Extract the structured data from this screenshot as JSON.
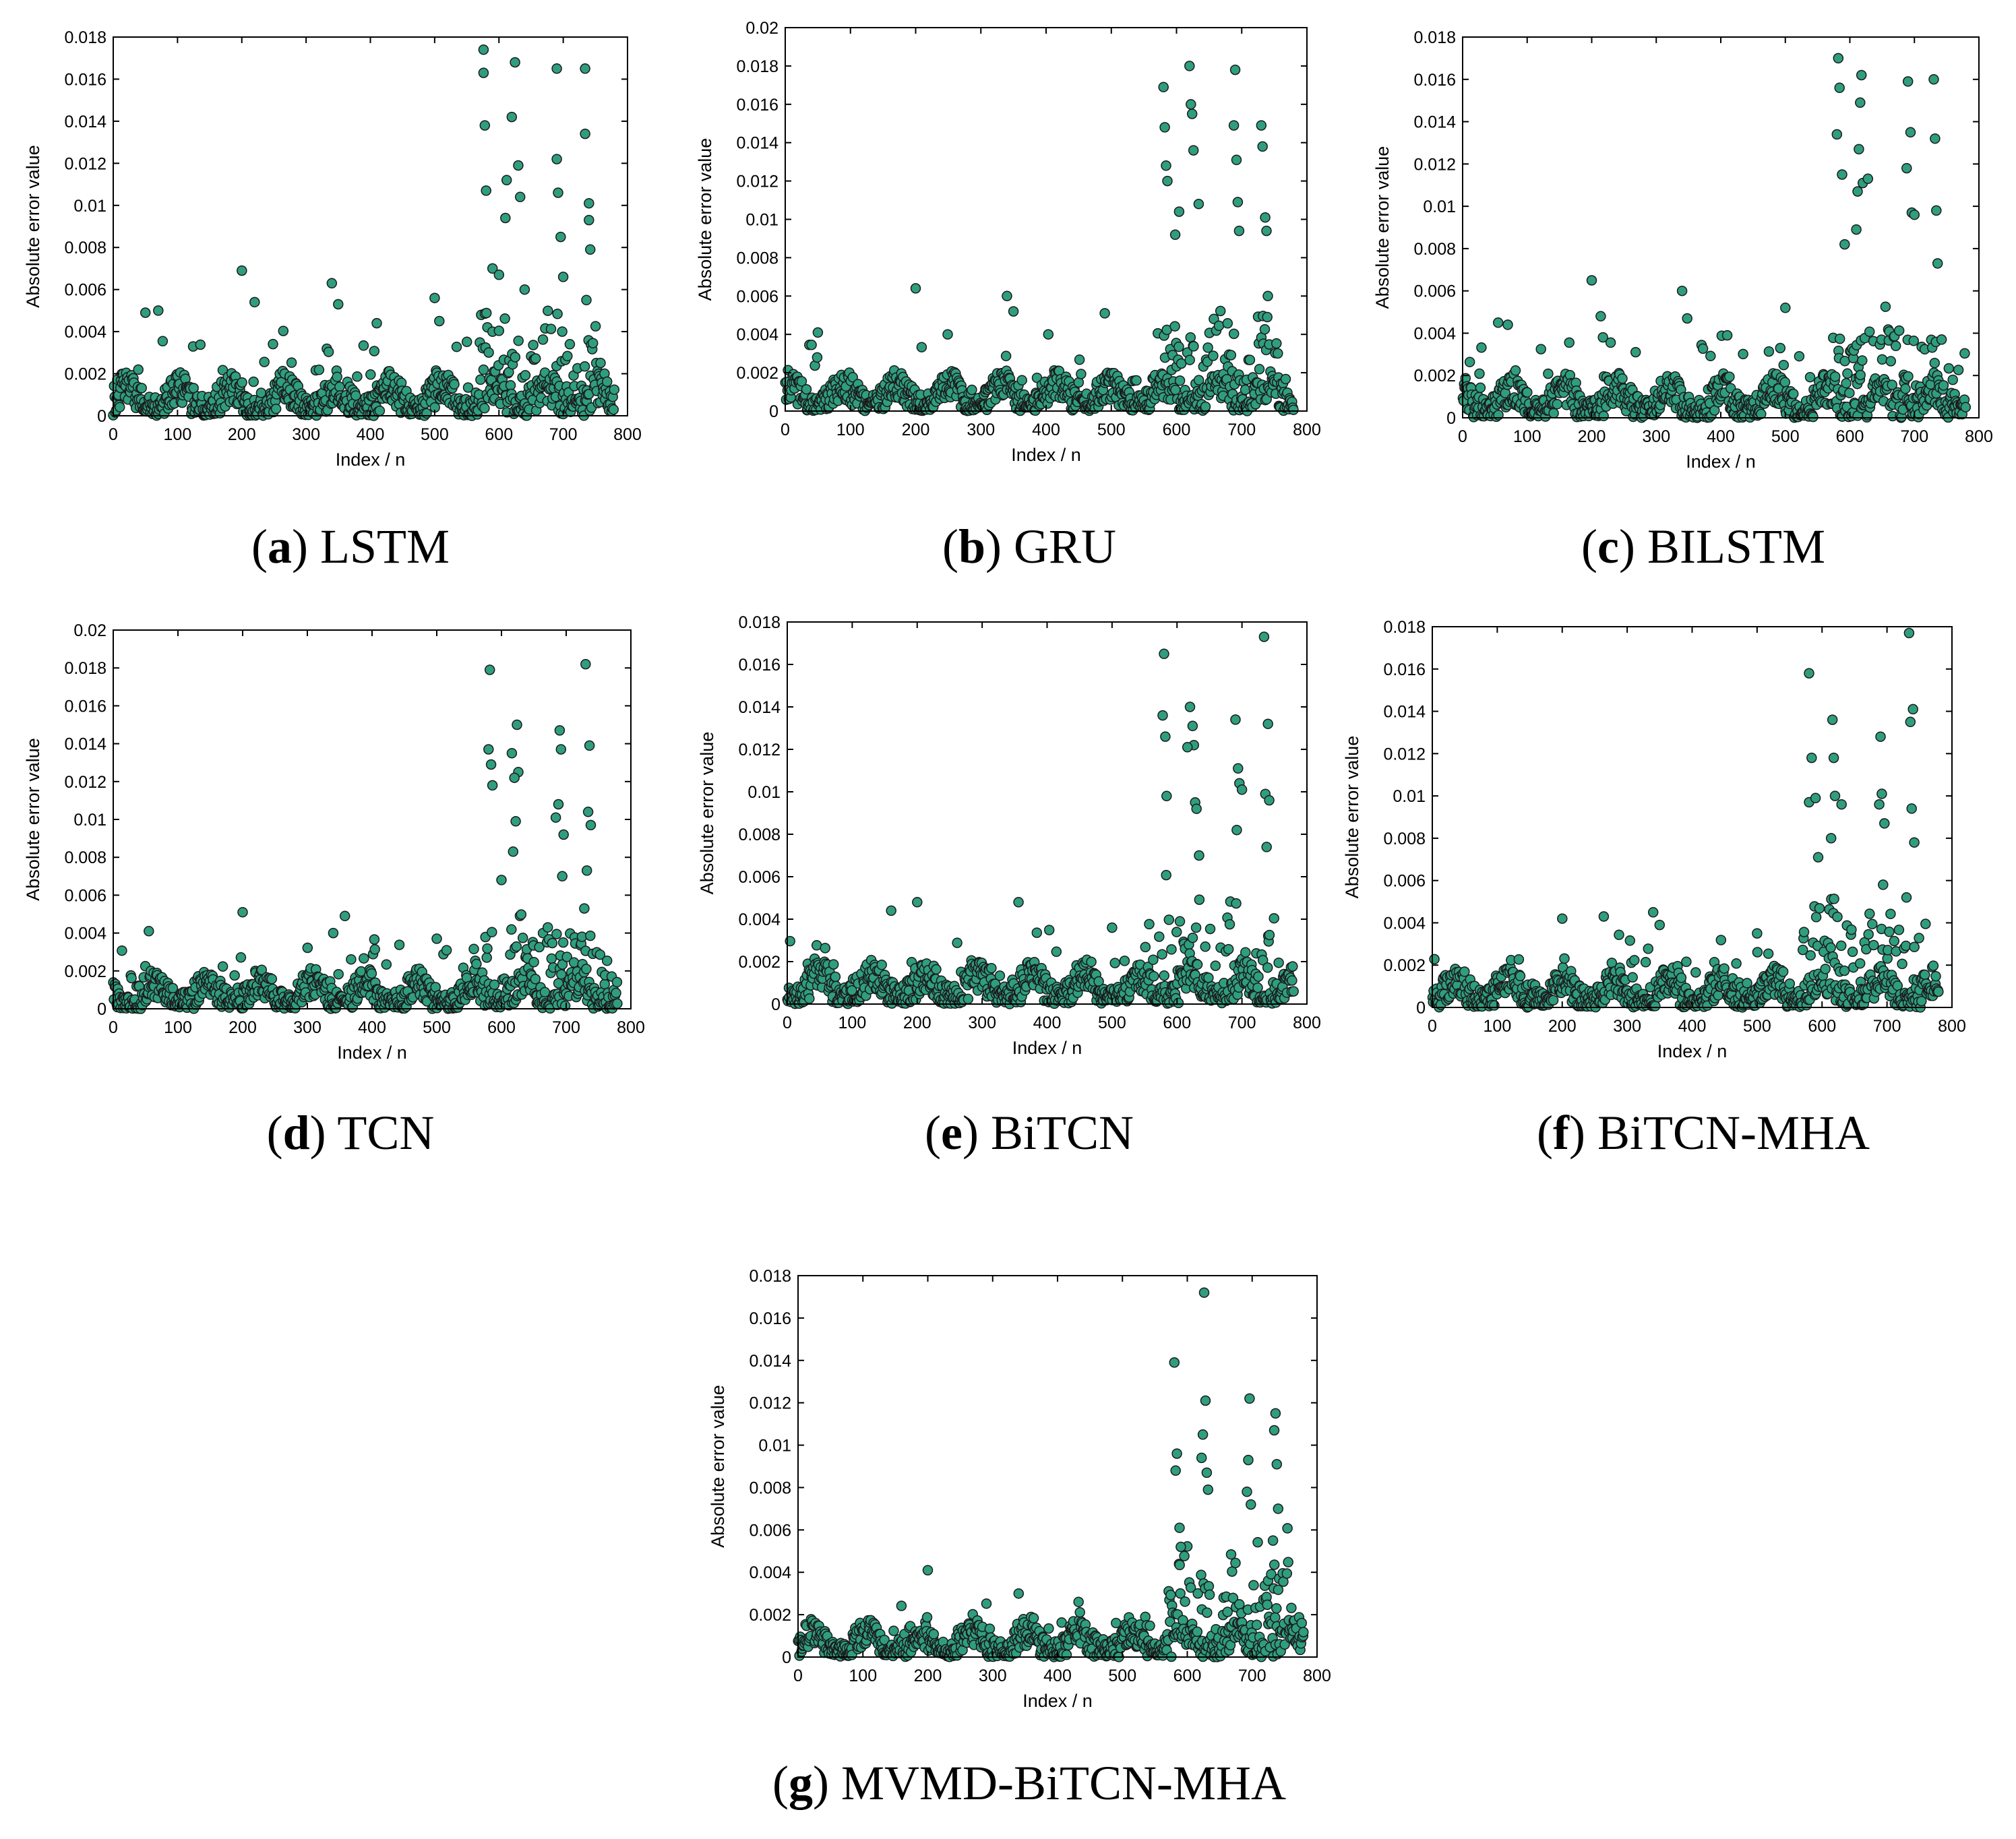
{
  "colors": {
    "marker_fill": "#2f9e7e",
    "marker_stroke": "#1b1b1b",
    "axis": "#000000"
  },
  "chart_data": [
    {
      "type": "scatter",
      "panel": "a",
      "letter": "a",
      "label": " LSTM",
      "xlabel": "Index / n",
      "ylabel": "Absolute error value",
      "xlim": [
        0,
        800
      ],
      "ylim": [
        0,
        0.018
      ],
      "xticks": [
        0,
        100,
        200,
        300,
        400,
        500,
        600,
        700,
        800
      ],
      "xticklabels": [
        "0",
        "100",
        "200",
        "300",
        "400",
        "500",
        "600",
        "700",
        "800"
      ],
      "yticks": [
        0,
        0.002,
        0.004,
        0.006,
        0.008,
        0.01,
        0.012,
        0.014,
        0.016,
        0.018
      ],
      "yticklabels": [
        "0",
        "0.002",
        "0.004",
        "0.006",
        "0.008",
        "0.01",
        "0.012",
        "0.014",
        "0.016",
        "0.018"
      ],
      "n_points": 780,
      "baseline_level": 0.0013,
      "baseline_max": 0.0045,
      "peaks": [
        [
          50,
          0.0049
        ],
        [
          70,
          0.005
        ],
        [
          200,
          0.0069
        ],
        [
          220,
          0.0054
        ],
        [
          340,
          0.0063
        ],
        [
          350,
          0.0053
        ],
        [
          410,
          0.0044
        ],
        [
          500,
          0.0056
        ],
        [
          576,
          0.0174
        ],
        [
          576,
          0.0163
        ],
        [
          578,
          0.0138
        ],
        [
          580,
          0.0107
        ],
        [
          590,
          0.007
        ],
        [
          600,
          0.0067
        ],
        [
          610,
          0.0094
        ],
        [
          612,
          0.0112
        ],
        [
          620,
          0.0142
        ],
        [
          625,
          0.0168
        ],
        [
          630,
          0.0119
        ],
        [
          633,
          0.0104
        ],
        [
          640,
          0.006
        ],
        [
          690,
          0.0165
        ],
        [
          690,
          0.0122
        ],
        [
          692,
          0.0106
        ],
        [
          696,
          0.0085
        ],
        [
          700,
          0.0066
        ],
        [
          734,
          0.0165
        ],
        [
          734,
          0.0134
        ],
        [
          740,
          0.0101
        ],
        [
          740,
          0.0093
        ],
        [
          742,
          0.0079
        ],
        [
          736,
          0.0055
        ]
      ]
    },
    {
      "type": "scatter",
      "panel": "b",
      "letter": "b",
      "label": " GRU",
      "xlabel": "Index / n",
      "ylabel": "Absolute error value",
      "xlim": [
        0,
        800
      ],
      "ylim": [
        0,
        0.02
      ],
      "xticks": [
        0,
        100,
        200,
        300,
        400,
        500,
        600,
        700,
        800
      ],
      "xticklabels": [
        "0",
        "100",
        "200",
        "300",
        "400",
        "500",
        "600",
        "700",
        "800"
      ],
      "yticks": [
        0,
        0.002,
        0.004,
        0.006,
        0.008,
        0.01,
        0.012,
        0.014,
        0.016,
        0.018,
        0.02
      ],
      "yticklabels": [
        "0",
        "0.002",
        "0.004",
        "0.006",
        "0.008",
        "0.01",
        "0.012",
        "0.014",
        "0.016",
        "0.018",
        "0.02"
      ],
      "n_points": 780,
      "baseline_level": 0.0013,
      "baseline_max": 0.004,
      "peaks": [
        [
          50,
          0.0041
        ],
        [
          200,
          0.0064
        ],
        [
          340,
          0.006
        ],
        [
          350,
          0.0052
        ],
        [
          490,
          0.0051
        ],
        [
          580,
          0.0169
        ],
        [
          582,
          0.0148
        ],
        [
          584,
          0.0128
        ],
        [
          586,
          0.012
        ],
        [
          598,
          0.0092
        ],
        [
          604,
          0.0104
        ],
        [
          620,
          0.018
        ],
        [
          622,
          0.016
        ],
        [
          624,
          0.0155
        ],
        [
          626,
          0.0136
        ],
        [
          634,
          0.0108
        ],
        [
          690,
          0.0178
        ],
        [
          688,
          0.0149
        ],
        [
          692,
          0.0131
        ],
        [
          694,
          0.0109
        ],
        [
          696,
          0.0094
        ],
        [
          730,
          0.0149
        ],
        [
          732,
          0.0138
        ],
        [
          736,
          0.0101
        ],
        [
          738,
          0.0094
        ],
        [
          740,
          0.006
        ]
      ]
    },
    {
      "type": "scatter",
      "panel": "c",
      "letter": "c",
      "label": " BILSTM",
      "xlabel": "Index / n",
      "ylabel": "Absolute error value",
      "xlim": [
        0,
        800
      ],
      "ylim": [
        0,
        0.018
      ],
      "xticks": [
        0,
        100,
        200,
        300,
        400,
        500,
        600,
        700,
        800
      ],
      "xticklabels": [
        "0",
        "100",
        "200",
        "300",
        "400",
        "500",
        "600",
        "700",
        "800"
      ],
      "yticks": [
        0,
        0.002,
        0.004,
        0.006,
        0.008,
        0.01,
        0.012,
        0.014,
        0.016,
        0.018
      ],
      "yticklabels": [
        "0",
        "0.002",
        "0.004",
        "0.006",
        "0.008",
        "0.01",
        "0.012",
        "0.014",
        "0.016",
        "0.018"
      ],
      "n_points": 780,
      "baseline_level": 0.0013,
      "baseline_max": 0.0045,
      "peaks": [
        [
          55,
          0.0045
        ],
        [
          70,
          0.0044
        ],
        [
          200,
          0.0065
        ],
        [
          214,
          0.0048
        ],
        [
          340,
          0.006
        ],
        [
          348,
          0.0047
        ],
        [
          410,
          0.0039
        ],
        [
          500,
          0.0052
        ],
        [
          582,
          0.017
        ],
        [
          584,
          0.0156
        ],
        [
          580,
          0.0134
        ],
        [
          588,
          0.0115
        ],
        [
          592,
          0.0082
        ],
        [
          618,
          0.0162
        ],
        [
          616,
          0.0149
        ],
        [
          614,
          0.0127
        ],
        [
          612,
          0.0107
        ],
        [
          620,
          0.0111
        ],
        [
          628,
          0.0113
        ],
        [
          610,
          0.0089
        ],
        [
          690,
          0.0159
        ],
        [
          694,
          0.0135
        ],
        [
          688,
          0.0118
        ],
        [
          696,
          0.0097
        ],
        [
          700,
          0.0096
        ],
        [
          730,
          0.016
        ],
        [
          732,
          0.0132
        ],
        [
          734,
          0.0098
        ],
        [
          736,
          0.0073
        ]
      ]
    },
    {
      "type": "scatter",
      "panel": "d",
      "letter": "d",
      "label": " TCN",
      "xlabel": "Index / n",
      "ylabel": "Absolute error value",
      "xlim": [
        0,
        800
      ],
      "ylim": [
        0,
        0.02
      ],
      "xticks": [
        0,
        100,
        200,
        300,
        400,
        500,
        600,
        700,
        800
      ],
      "xticklabels": [
        "0",
        "100",
        "200",
        "300",
        "400",
        "500",
        "600",
        "700",
        "800"
      ],
      "yticks": [
        0,
        0.002,
        0.004,
        0.006,
        0.008,
        0.01,
        0.012,
        0.014,
        0.016,
        0.018,
        0.02
      ],
      "yticklabels": [
        "0",
        "0.002",
        "0.004",
        "0.006",
        "0.008",
        "0.01",
        "0.012",
        "0.014",
        "0.016",
        "0.018",
        "0.02"
      ],
      "n_points": 780,
      "baseline_level": 0.0013,
      "baseline_max": 0.004,
      "peaks": [
        [
          55,
          0.0041
        ],
        [
          200,
          0.0051
        ],
        [
          340,
          0.004
        ],
        [
          358,
          0.0049
        ],
        [
          500,
          0.0037
        ],
        [
          582,
          0.0179
        ],
        [
          580,
          0.0137
        ],
        [
          584,
          0.0129
        ],
        [
          586,
          0.0118
        ],
        [
          600,
          0.0068
        ],
        [
          616,
          0.0135
        ],
        [
          624,
          0.015
        ],
        [
          626,
          0.0125
        ],
        [
          620,
          0.0122
        ],
        [
          622,
          0.0099
        ],
        [
          618,
          0.0083
        ],
        [
          690,
          0.0147
        ],
        [
          692,
          0.0137
        ],
        [
          688,
          0.0108
        ],
        [
          684,
          0.0101
        ],
        [
          696,
          0.0092
        ],
        [
          694,
          0.007
        ],
        [
          730,
          0.0182
        ],
        [
          736,
          0.0139
        ],
        [
          734,
          0.0104
        ],
        [
          738,
          0.0097
        ],
        [
          732,
          0.0073
        ],
        [
          728,
          0.0053
        ]
      ]
    },
    {
      "type": "scatter",
      "panel": "e",
      "letter": "e",
      "label": " BiTCN",
      "xlabel": "Index / n",
      "ylabel": "Absolute error value",
      "xlim": [
        0,
        800
      ],
      "ylim": [
        0,
        0.018
      ],
      "xticks": [
        0,
        100,
        200,
        300,
        400,
        500,
        600,
        700,
        800
      ],
      "xticklabels": [
        "0",
        "100",
        "200",
        "300",
        "400",
        "500",
        "600",
        "700",
        "800"
      ],
      "yticks": [
        0,
        0.002,
        0.004,
        0.006,
        0.008,
        0.01,
        0.012,
        0.014,
        0.016,
        0.018
      ],
      "yticklabels": [
        "0",
        "0.002",
        "0.004",
        "0.006",
        "0.008",
        "0.01",
        "0.012",
        "0.014",
        "0.016",
        "0.018"
      ],
      "n_points": 780,
      "baseline_level": 0.0013,
      "baseline_max": 0.0038,
      "peaks": [
        [
          160,
          0.0044
        ],
        [
          200,
          0.0048
        ],
        [
          356,
          0.0048
        ],
        [
          500,
          0.0036
        ],
        [
          580,
          0.0165
        ],
        [
          578,
          0.0136
        ],
        [
          582,
          0.0126
        ],
        [
          584,
          0.0098
        ],
        [
          620,
          0.014
        ],
        [
          624,
          0.0131
        ],
        [
          626,
          0.0122
        ],
        [
          616,
          0.0121
        ],
        [
          628,
          0.0095
        ],
        [
          630,
          0.0092
        ],
        [
          634,
          0.007
        ],
        [
          690,
          0.0134
        ],
        [
          694,
          0.0111
        ],
        [
          696,
          0.0104
        ],
        [
          700,
          0.0101
        ],
        [
          692,
          0.0082
        ],
        [
          734,
          0.0173
        ],
        [
          740,
          0.0132
        ],
        [
          736,
          0.0099
        ],
        [
          742,
          0.0096
        ],
        [
          738,
          0.0074
        ]
      ]
    },
    {
      "type": "scatter",
      "panel": "f",
      "letter": "f",
      "label": " BiTCN-MHA",
      "xlabel": "Index / n",
      "ylabel": "Absolute error value",
      "xlim": [
        0,
        800
      ],
      "ylim": [
        0,
        0.018
      ],
      "xticks": [
        0,
        100,
        200,
        300,
        400,
        500,
        600,
        700,
        800
      ],
      "xticklabels": [
        "0",
        "100",
        "200",
        "300",
        "400",
        "500",
        "600",
        "700",
        "800"
      ],
      "yticks": [
        0,
        0.002,
        0.004,
        0.006,
        0.008,
        0.01,
        0.012,
        0.014,
        0.016,
        0.018
      ],
      "yticklabels": [
        "0",
        "0.002",
        "0.004",
        "0.006",
        "0.008",
        "0.01",
        "0.012",
        "0.014",
        "0.016",
        "0.018"
      ],
      "n_points": 780,
      "baseline_level": 0.0012,
      "baseline_max": 0.0035,
      "peaks": [
        [
          200,
          0.0042
        ],
        [
          264,
          0.0043
        ],
        [
          340,
          0.0045
        ],
        [
          350,
          0.0039
        ],
        [
          500,
          0.0035
        ],
        [
          580,
          0.0158
        ],
        [
          584,
          0.0118
        ],
        [
          580,
          0.0097
        ],
        [
          590,
          0.0099
        ],
        [
          594,
          0.0071
        ],
        [
          616,
          0.0136
        ],
        [
          618,
          0.0118
        ],
        [
          614,
          0.008
        ],
        [
          620,
          0.01
        ],
        [
          630,
          0.0096
        ],
        [
          690,
          0.0128
        ],
        [
          692,
          0.0101
        ],
        [
          688,
          0.0096
        ],
        [
          696,
          0.0087
        ],
        [
          694,
          0.0058
        ],
        [
          734,
          0.0177
        ],
        [
          736,
          0.0135
        ],
        [
          740,
          0.0141
        ],
        [
          738,
          0.0094
        ],
        [
          742,
          0.0078
        ],
        [
          730,
          0.0052
        ]
      ]
    },
    {
      "type": "scatter",
      "panel": "g",
      "letter": "g",
      "label": " MVMD-BiTCN-MHA",
      "xlabel": "Index / n",
      "ylabel": "Absolute error value",
      "xlim": [
        0,
        800
      ],
      "ylim": [
        0,
        0.018
      ],
      "xticks": [
        0,
        100,
        200,
        300,
        400,
        500,
        600,
        700,
        800
      ],
      "xticklabels": [
        "0",
        "100",
        "200",
        "300",
        "400",
        "500",
        "600",
        "700",
        "800"
      ],
      "yticks": [
        0,
        0.002,
        0.004,
        0.006,
        0.008,
        0.01,
        0.012,
        0.014,
        0.016,
        0.018
      ],
      "yticklabels": [
        "0",
        "0.002",
        "0.004",
        "0.006",
        "0.008",
        "0.01",
        "0.012",
        "0.014",
        "0.016",
        "0.018"
      ],
      "n_points": 780,
      "baseline_level": 0.0011,
      "baseline_max": 0.0026,
      "peaks": [
        [
          200,
          0.0041
        ],
        [
          340,
          0.003
        ],
        [
          580,
          0.0139
        ],
        [
          584,
          0.0096
        ],
        [
          582,
          0.0088
        ],
        [
          588,
          0.0061
        ],
        [
          590,
          0.0052
        ],
        [
          626,
          0.0172
        ],
        [
          628,
          0.0121
        ],
        [
          624,
          0.0105
        ],
        [
          622,
          0.0094
        ],
        [
          630,
          0.0087
        ],
        [
          632,
          0.0079
        ],
        [
          696,
          0.0122
        ],
        [
          694,
          0.0093
        ],
        [
          692,
          0.0078
        ],
        [
          698,
          0.0072
        ],
        [
          736,
          0.0115
        ],
        [
          734,
          0.0107
        ],
        [
          738,
          0.0091
        ],
        [
          740,
          0.007
        ],
        [
          732,
          0.0055
        ]
      ]
    }
  ]
}
